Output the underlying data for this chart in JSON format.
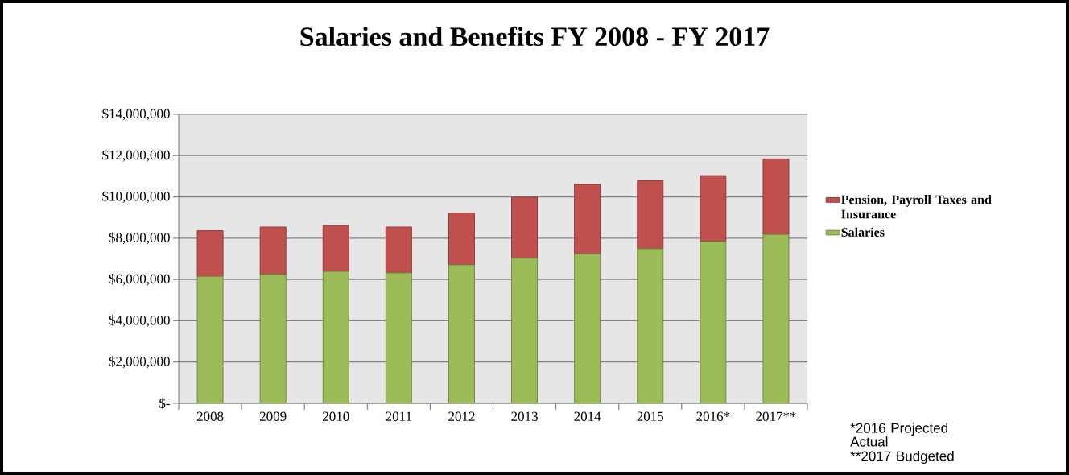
{
  "chart_data": {
    "type": "bar",
    "title": "Salaries and Benefits FY 2008 - FY 2017",
    "stacked": true,
    "grid": "y",
    "legend": "right",
    "categories": [
      "2008",
      "2009",
      "2010",
      "2011",
      "2012",
      "2013",
      "2014",
      "2015",
      "2016*",
      "2017**"
    ],
    "series": [
      {
        "name": "Salaries",
        "color": "#9bbb59",
        "values": [
          6150000,
          6240000,
          6390000,
          6320000,
          6710000,
          7030000,
          7230000,
          7490000,
          7830000,
          8180000
        ]
      },
      {
        "name": "Pension, Payroll Taxes and Insurance",
        "color": "#c0504d",
        "values": [
          2210000,
          2300000,
          2220000,
          2220000,
          2510000,
          2960000,
          3380000,
          3290000,
          3200000,
          3660000
        ]
      }
    ],
    "ylim": [
      0,
      14000000
    ],
    "yticks": [
      {
        "value": 0,
        "label": "$-"
      },
      {
        "value": 2000000,
        "label": "$2,000,000"
      },
      {
        "value": 4000000,
        "label": "$4,000,000"
      },
      {
        "value": 6000000,
        "label": "$6,000,000"
      },
      {
        "value": 8000000,
        "label": "$8,000,000"
      },
      {
        "value": 10000000,
        "label": "$10,000,000"
      },
      {
        "value": 12000000,
        "label": "$12,000,000"
      },
      {
        "value": 14000000,
        "label": "$14,000,000"
      }
    ],
    "annotations": [
      "*2016 Projected Actual",
      "**2017 Budgeted"
    ]
  }
}
